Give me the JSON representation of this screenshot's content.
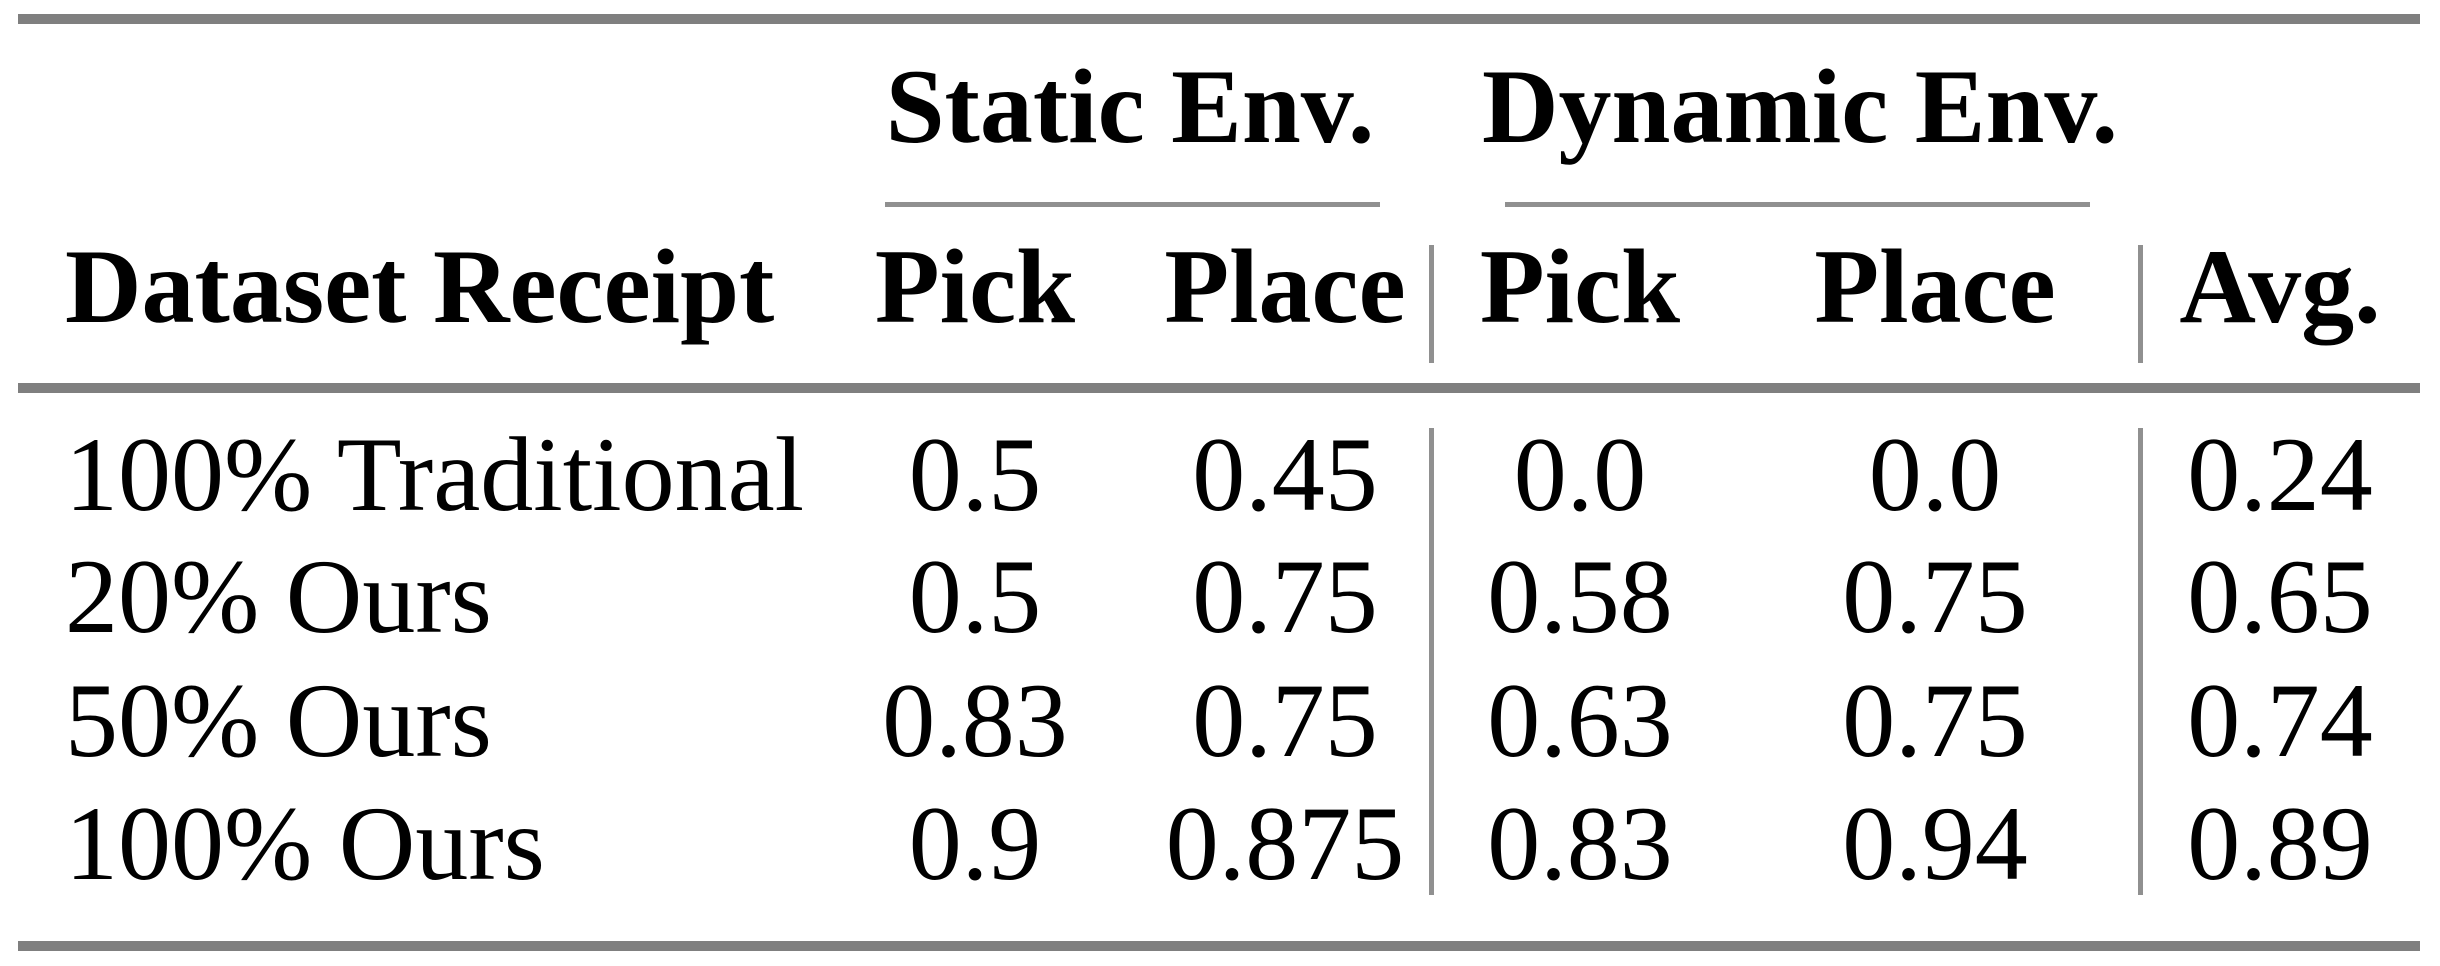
{
  "table": {
    "group_headers": [
      {
        "label": "Static Env."
      },
      {
        "label": "Dynamic Env."
      }
    ],
    "columns": {
      "row_header": "Dataset Receipt",
      "static_pick": "Pick",
      "static_place": "Place",
      "dynamic_pick": "Pick",
      "dynamic_place": "Place",
      "avg": "Avg."
    },
    "rows": [
      {
        "label": "100% Traditional",
        "static_pick": "0.5",
        "static_place": "0.45",
        "dynamic_pick": "0.0",
        "dynamic_place": "0.0",
        "avg": "0.24"
      },
      {
        "label": "20% Ours",
        "static_pick": "0.5",
        "static_place": "0.75",
        "dynamic_pick": "0.58",
        "dynamic_place": "0.75",
        "avg": "0.65"
      },
      {
        "label": "50% Ours",
        "static_pick": "0.83",
        "static_place": "0.75",
        "dynamic_pick": "0.63",
        "dynamic_place": "0.75",
        "avg": "0.74"
      },
      {
        "label": "100% Ours",
        "static_pick": "0.9",
        "static_place": "0.875",
        "dynamic_pick": "0.83",
        "dynamic_place": "0.94",
        "avg": "0.89"
      }
    ],
    "colors": {
      "rule_heavy": "#7f7f7f",
      "rule_light": "#909090",
      "text": "#000000",
      "background": "#ffffff"
    }
  },
  "chart_data": {
    "type": "table",
    "columns": [
      "Dataset Receipt",
      "Static Env. Pick",
      "Static Env. Place",
      "Dynamic Env. Pick",
      "Dynamic Env. Place",
      "Avg."
    ],
    "rows": [
      [
        "100% Traditional",
        0.5,
        0.45,
        0.0,
        0.0,
        0.24
      ],
      [
        "20% Ours",
        0.5,
        0.75,
        0.58,
        0.75,
        0.65
      ],
      [
        "50% Ours",
        0.83,
        0.75,
        0.63,
        0.75,
        0.74
      ],
      [
        "100% Ours",
        0.9,
        0.875,
        0.83,
        0.94,
        0.89
      ]
    ]
  }
}
